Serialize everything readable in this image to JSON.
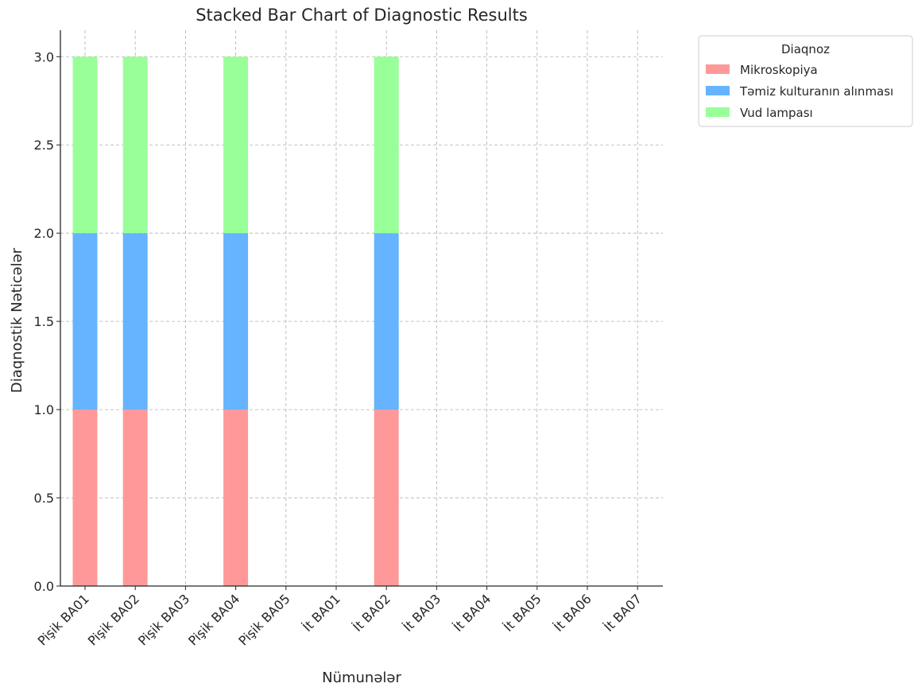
{
  "chart_data": {
    "type": "bar",
    "stacked": true,
    "title": "Stacked Bar Chart of Diagnostic Results",
    "xlabel": "Nümunələr",
    "ylabel": "Diaqnostik Nəticələr",
    "ylim": [
      0,
      3.15
    ],
    "yticks": [
      "0.0",
      "0.5",
      "1.0",
      "1.5",
      "2.0",
      "2.5",
      "3.0"
    ],
    "grid": true,
    "legend_title": "Diaqnoz",
    "legend_position": "upper right outside",
    "categories": [
      "Pişik BA01",
      "Pişik BA02",
      "Pişik BA03",
      "Pişik BA04",
      "Pişik BA05",
      "İt BA01",
      "İt BA02",
      "İt BA03",
      "İt BA04",
      "İt BA05",
      "İt BA06",
      "İt BA07"
    ],
    "series": [
      {
        "name": "Mikroskopiya",
        "color": "#ff9999",
        "values": [
          1,
          1,
          0,
          1,
          0,
          0,
          1,
          0,
          0,
          0,
          0,
          0
        ]
      },
      {
        "name": "Təmiz kulturanın alınması",
        "color": "#66b3ff",
        "values": [
          1,
          1,
          0,
          1,
          0,
          0,
          1,
          0,
          0,
          0,
          0,
          0
        ]
      },
      {
        "name": "Vud lampası",
        "color": "#99ff99",
        "values": [
          1,
          1,
          0,
          1,
          0,
          0,
          1,
          0,
          0,
          0,
          0,
          0
        ]
      }
    ]
  }
}
